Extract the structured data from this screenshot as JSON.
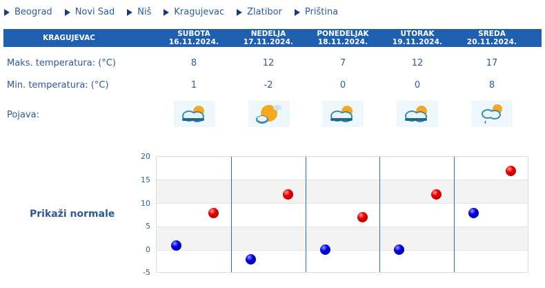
{
  "nav": {
    "items": [
      {
        "label": "Beograd"
      },
      {
        "label": "Novi Sad"
      },
      {
        "label": "Niš"
      },
      {
        "label": "Kragujevac"
      },
      {
        "label": "Zlatibor"
      },
      {
        "label": "Priština"
      }
    ]
  },
  "forecast": {
    "city": "KRAGUJEVAC",
    "days": [
      {
        "name": "SUBOTA",
        "date": "16.11.2024.",
        "max": "8",
        "min": "1",
        "icon": "partly-cloudy-icon"
      },
      {
        "name": "NEDELJA",
        "date": "17.11.2024.",
        "max": "12",
        "min": "-2",
        "icon": "mostly-sunny-icon"
      },
      {
        "name": "PONEDELJAK",
        "date": "18.11.2024.",
        "max": "7",
        "min": "0",
        "icon": "partly-cloudy-icon"
      },
      {
        "name": "UTORAK",
        "date": "19.11.2024.",
        "max": "12",
        "min": "0",
        "icon": "partly-cloudy-icon"
      },
      {
        "name": "SREDA",
        "date": "20.11.2024.",
        "max": "17",
        "min": "8",
        "icon": "partly-cloudy-light-rain-icon"
      }
    ],
    "labels": {
      "max": "Maks. temperatura: (°C)",
      "min": "Min. temperatura: (°C)",
      "phenomenon": "Pojava:"
    }
  },
  "show_normals_label": "Prikaži normale",
  "colors": {
    "header_bg": "#1f5fae",
    "text": "#2c5a94",
    "max_dot": "#e60000",
    "min_dot": "#0000e0"
  },
  "chart_data": {
    "type": "scatter",
    "title": "",
    "xlabel": "",
    "ylabel": "",
    "categories": [
      "16.11.2024.",
      "17.11.2024.",
      "18.11.2024.",
      "19.11.2024.",
      "20.11.2024."
    ],
    "series": [
      {
        "name": "Maks. temperatura",
        "color": "#e60000",
        "values": [
          8,
          12,
          7,
          12,
          17
        ]
      },
      {
        "name": "Min. temperatura",
        "color": "#0000e0",
        "values": [
          1,
          -2,
          0,
          0,
          8
        ]
      }
    ],
    "yticks": [
      "20",
      "15",
      "10",
      "5",
      "0",
      "-5"
    ],
    "ylim": [
      -5,
      20
    ],
    "grid": true,
    "legend": "none"
  }
}
